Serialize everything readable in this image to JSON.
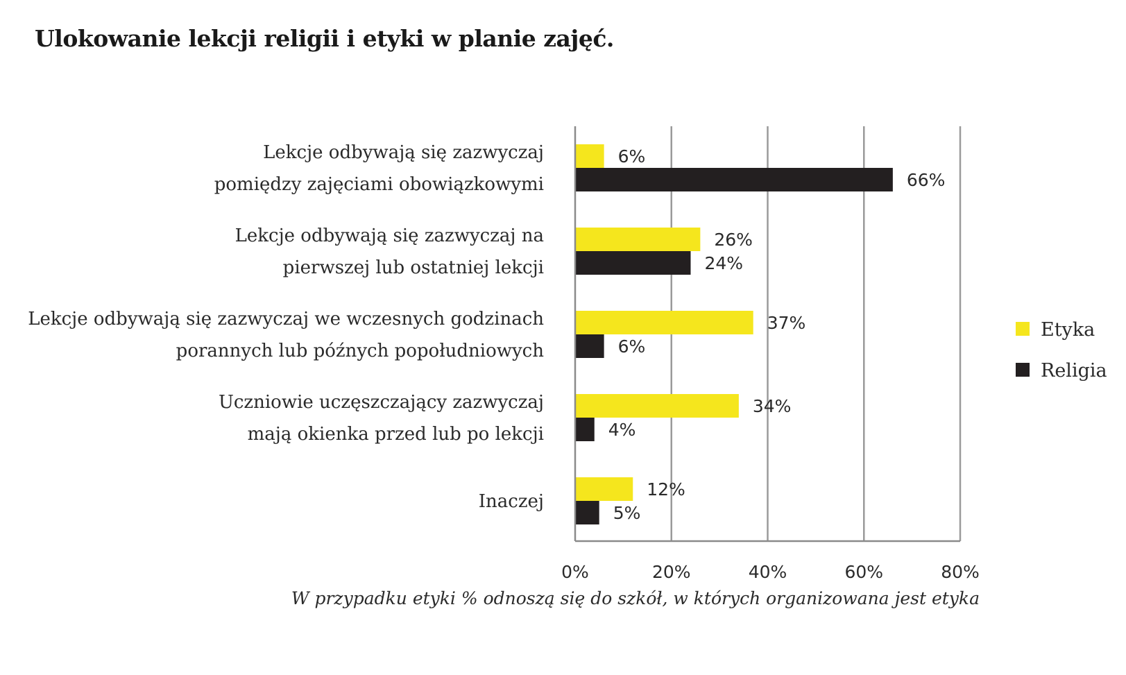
{
  "title": "Ulokowanie lekcji religii i etyki w planie zajęć.",
  "note": "W przypadku etyki % odnoszą się do szkół, w których organizowana jest etyka",
  "chart_data": {
    "type": "bar",
    "orientation": "horizontal",
    "categories": [
      [
        "Lekcje odbywają się zazwyczaj",
        "pomiędzy zajęciami obowiązkowymi"
      ],
      [
        "Lekcje odbywają się zazwyczaj na",
        "pierwszej lub ostatniej lekcji"
      ],
      [
        "Lekcje odbywają się zazwyczaj we wczesnych godzinach",
        "porannych lub późnych popołudniowych"
      ],
      [
        "Uczniowie uczęszczający zazwyczaj",
        "mają okienka przed lub po lekcji"
      ],
      [
        "Inaczej"
      ]
    ],
    "series": [
      {
        "name": "Etyka",
        "color": "#f5e61d",
        "values": [
          6,
          26,
          37,
          34,
          12
        ],
        "labels": [
          "6%",
          "26%",
          "37%",
          "34%",
          "12%"
        ]
      },
      {
        "name": "Religia",
        "color": "#231f20",
        "values": [
          66,
          24,
          6,
          4,
          5
        ],
        "labels": [
          "66%",
          "24%",
          "6%",
          "4%",
          "5%"
        ]
      }
    ],
    "xlim": [
      0,
      80
    ],
    "xticks": [
      "0%",
      "20%",
      "40%",
      "60%",
      "80%"
    ],
    "grid": true,
    "legend_position": "right"
  }
}
